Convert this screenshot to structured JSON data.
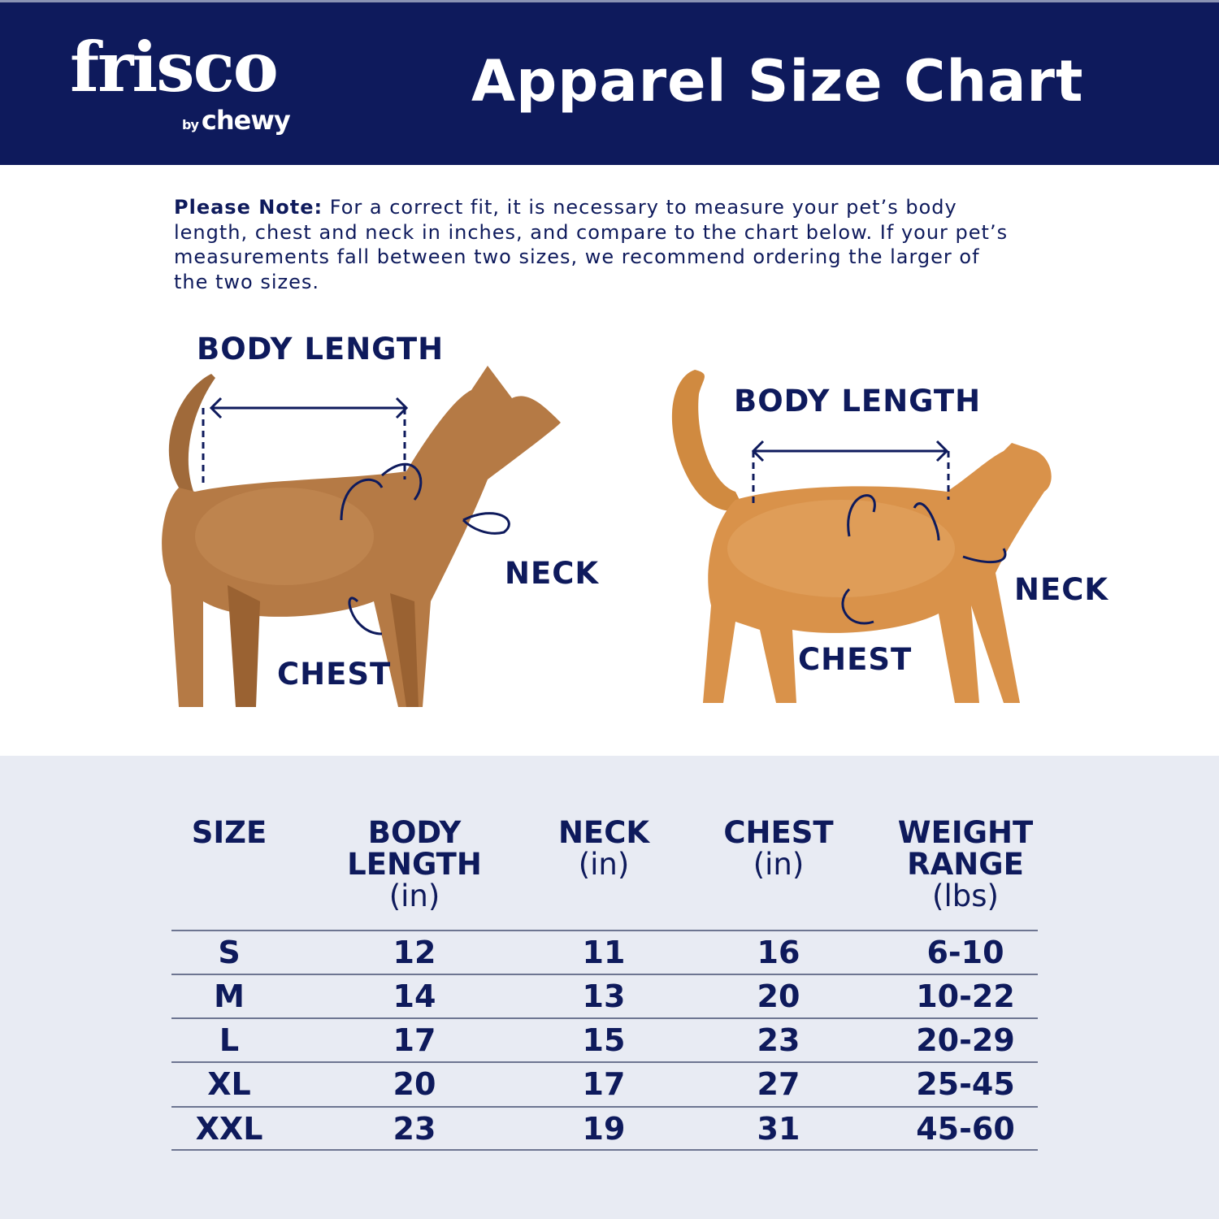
{
  "brand": {
    "logo_text": "frisco",
    "sub_logo": "chewy",
    "by": "by",
    "navy": "#0e1a5c"
  },
  "header": {
    "title": "Apparel Size Chart"
  },
  "note": {
    "label": "Please Note:",
    "text": " For a correct fit, it is necessary to measure your pet’s body length, chest and neck in inches, and compare to the chart below. If your pet’s measurements fall between two sizes, we recommend ordering the larger of the two sizes."
  },
  "dog": {
    "body_length": "BODY LENGTH",
    "neck": "NECK",
    "chest": "CHEST"
  },
  "cat": {
    "body_length": "BODY LENGTH",
    "neck": "NECK",
    "chest": "CHEST"
  },
  "table": {
    "headers": [
      {
        "name": "SIZE",
        "unit": ""
      },
      {
        "name": "BODY LENGTH",
        "unit": "(in)"
      },
      {
        "name": "NECK",
        "unit": "(in)"
      },
      {
        "name": "CHEST",
        "unit": "(in)"
      },
      {
        "name": "WEIGHT RANGE",
        "unit": "(lbs)"
      }
    ],
    "rows": [
      [
        "S",
        "12",
        "11",
        "16",
        "6-10"
      ],
      [
        "M",
        "14",
        "13",
        "20",
        "10-22"
      ],
      [
        "L",
        "17",
        "15",
        "23",
        "20-29"
      ],
      [
        "XL",
        "20",
        "17",
        "27",
        "25-45"
      ],
      [
        "XXL",
        "23",
        "19",
        "31",
        "45-60"
      ]
    ]
  }
}
